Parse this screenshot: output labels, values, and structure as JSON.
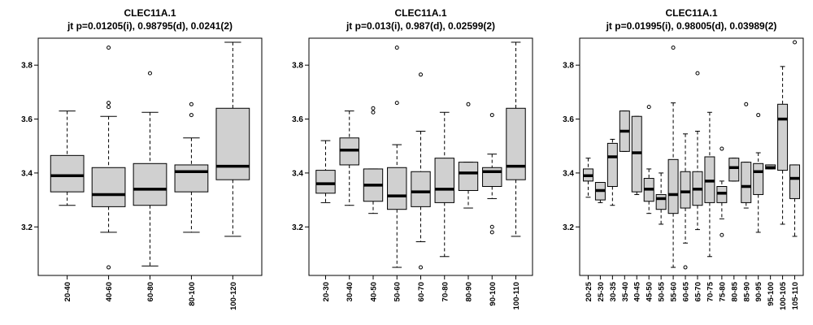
{
  "chart_data": [
    {
      "type": "boxplot",
      "title": "CLEC11A.1",
      "subtitle": "jt p=0.01205(i), 0.98795(d), 0.0241(2)",
      "ylim": [
        3.02,
        3.9
      ],
      "yticks": [
        3.2,
        3.4,
        3.6,
        3.8
      ],
      "categories": [
        "20-40",
        "40-60",
        "60-80",
        "80-100",
        "100-120"
      ],
      "boxes": [
        {
          "min": 3.28,
          "q1": 3.33,
          "median": 3.39,
          "q3": 3.465,
          "max": 3.63,
          "outliers": []
        },
        {
          "min": 3.18,
          "q1": 3.275,
          "median": 3.32,
          "q3": 3.42,
          "max": 3.61,
          "outliers": [
            3.865,
            3.66,
            3.645,
            3.05
          ]
        },
        {
          "min": 3.055,
          "q1": 3.28,
          "median": 3.34,
          "q3": 3.435,
          "max": 3.625,
          "outliers": [
            3.77
          ]
        },
        {
          "min": 3.18,
          "q1": 3.33,
          "median": 3.405,
          "q3": 3.43,
          "max": 3.53,
          "outliers": [
            3.655,
            3.615
          ]
        },
        {
          "min": 3.165,
          "q1": 3.375,
          "median": 3.425,
          "q3": 3.64,
          "max": 3.885,
          "outliers": []
        }
      ]
    },
    {
      "type": "boxplot",
      "title": "CLEC11A.1",
      "subtitle": "jt p=0.013(i), 0.987(d), 0.02599(2)",
      "ylim": [
        3.02,
        3.9
      ],
      "yticks": [
        3.2,
        3.4,
        3.6,
        3.8
      ],
      "categories": [
        "20-30",
        "30-40",
        "40-50",
        "50-60",
        "60-70",
        "70-80",
        "80-90",
        "90-100",
        "100-110"
      ],
      "boxes": [
        {
          "min": 3.29,
          "q1": 3.325,
          "median": 3.36,
          "q3": 3.41,
          "max": 3.52,
          "outliers": []
        },
        {
          "min": 3.28,
          "q1": 3.43,
          "median": 3.485,
          "q3": 3.53,
          "max": 3.63,
          "outliers": []
        },
        {
          "min": 3.25,
          "q1": 3.295,
          "median": 3.355,
          "q3": 3.415,
          "max": 3.415,
          "outliers": [
            3.64,
            3.625
          ]
        },
        {
          "min": 3.05,
          "q1": 3.265,
          "median": 3.315,
          "q3": 3.42,
          "max": 3.505,
          "outliers": [
            3.865,
            3.66
          ]
        },
        {
          "min": 3.145,
          "q1": 3.275,
          "median": 3.33,
          "q3": 3.405,
          "max": 3.555,
          "outliers": [
            3.765,
            3.05
          ]
        },
        {
          "min": 3.09,
          "q1": 3.29,
          "median": 3.34,
          "q3": 3.455,
          "max": 3.625,
          "outliers": []
        },
        {
          "min": 3.27,
          "q1": 3.335,
          "median": 3.4,
          "q3": 3.44,
          "max": 3.44,
          "outliers": [
            3.655
          ]
        },
        {
          "min": 3.305,
          "q1": 3.35,
          "median": 3.405,
          "q3": 3.42,
          "max": 3.47,
          "outliers": [
            3.615,
            3.2,
            3.18
          ]
        },
        {
          "min": 3.165,
          "q1": 3.375,
          "median": 3.425,
          "q3": 3.64,
          "max": 3.885,
          "outliers": []
        }
      ]
    },
    {
      "type": "boxplot",
      "title": "CLEC11A.1",
      "subtitle": "jt p=0.01995(i), 0.98005(d), 0.03989(2)",
      "ylim": [
        3.02,
        3.9
      ],
      "yticks": [
        3.2,
        3.4,
        3.6,
        3.8
      ],
      "categories": [
        "20-25",
        "25-30",
        "30-35",
        "35-40",
        "40-45",
        "45-50",
        "50-55",
        "55-60",
        "60-65",
        "65-70",
        "70-75",
        "75-80",
        "80-85",
        "85-90",
        "90-95",
        "95-100",
        "100-105",
        "105-110"
      ],
      "boxes": [
        {
          "min": 3.31,
          "q1": 3.37,
          "median": 3.39,
          "q3": 3.415,
          "max": 3.455,
          "outliers": []
        },
        {
          "min": 3.29,
          "q1": 3.3,
          "median": 3.335,
          "q3": 3.365,
          "max": 3.365,
          "outliers": []
        },
        {
          "min": 3.28,
          "q1": 3.35,
          "median": 3.46,
          "q3": 3.51,
          "max": 3.525,
          "outliers": []
        },
        {
          "min": 3.48,
          "q1": 3.48,
          "median": 3.555,
          "q3": 3.63,
          "max": 3.63,
          "outliers": []
        },
        {
          "min": 3.32,
          "q1": 3.33,
          "median": 3.475,
          "q3": 3.61,
          "max": 3.61,
          "outliers": []
        },
        {
          "min": 3.25,
          "q1": 3.295,
          "median": 3.34,
          "q3": 3.38,
          "max": 3.415,
          "outliers": [
            3.645
          ]
        },
        {
          "min": 3.21,
          "q1": 3.265,
          "median": 3.305,
          "q3": 3.32,
          "max": 3.4,
          "outliers": []
        },
        {
          "min": 3.05,
          "q1": 3.25,
          "median": 3.32,
          "q3": 3.45,
          "max": 3.66,
          "outliers": [
            3.865
          ]
        },
        {
          "min": 3.14,
          "q1": 3.27,
          "median": 3.33,
          "q3": 3.405,
          "max": 3.545,
          "outliers": [
            3.05
          ]
        },
        {
          "min": 3.19,
          "q1": 3.28,
          "median": 3.34,
          "q3": 3.405,
          "max": 3.555,
          "outliers": [
            3.77
          ]
        },
        {
          "min": 3.09,
          "q1": 3.29,
          "median": 3.37,
          "q3": 3.46,
          "max": 3.625,
          "outliers": []
        },
        {
          "min": 3.23,
          "q1": 3.29,
          "median": 3.325,
          "q3": 3.35,
          "max": 3.37,
          "outliers": [
            3.49,
            3.17
          ]
        },
        {
          "min": 3.37,
          "q1": 3.37,
          "median": 3.42,
          "q3": 3.455,
          "max": 3.455,
          "outliers": []
        },
        {
          "min": 3.27,
          "q1": 3.29,
          "median": 3.35,
          "q3": 3.44,
          "max": 3.44,
          "outliers": [
            3.655
          ]
        },
        {
          "min": 3.18,
          "q1": 3.32,
          "median": 3.405,
          "q3": 3.435,
          "max": 3.475,
          "outliers": [
            3.615
          ]
        },
        {
          "min": 3.415,
          "q1": 3.415,
          "median": 3.42,
          "q3": 3.43,
          "max": 3.43,
          "outliers": []
        },
        {
          "min": 3.21,
          "q1": 3.41,
          "median": 3.6,
          "q3": 3.655,
          "max": 3.795,
          "outliers": []
        },
        {
          "min": 3.165,
          "q1": 3.305,
          "median": 3.38,
          "q3": 3.43,
          "max": 3.43,
          "outliers": [
            3.885
          ]
        }
      ]
    }
  ]
}
